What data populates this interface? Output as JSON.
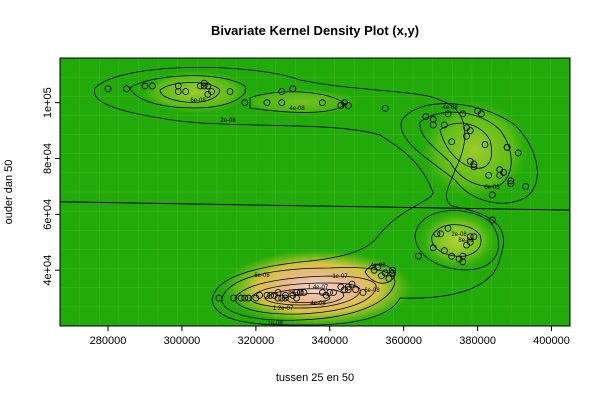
{
  "chart_data": {
    "type": "contour",
    "title": "Bivariate Kernel Density Plot (x,y)",
    "xlabel": "tussen 25 en 50",
    "ylabel": "ouder dan 50",
    "xlim": [
      267000,
      405000
    ],
    "ylim": [
      20000,
      116000
    ],
    "xticks": [
      280000,
      300000,
      320000,
      340000,
      360000,
      380000,
      400000
    ],
    "xtick_labels": [
      "280000",
      "300000",
      "320000",
      "340000",
      "360000",
      "380000",
      "400000"
    ],
    "yticks": [
      40000,
      60000,
      80000,
      100000
    ],
    "ytick_labels": [
      "4e+04",
      "6e+04",
      "8e+04",
      "1e+05"
    ],
    "contour_labels": [
      "2e-08",
      "4e-08",
      "6e-08",
      "4e-08",
      "6e-08",
      "1e-07",
      "8e-08",
      "1.2e-07",
      "1.4e-07",
      "2e-08",
      "4e-08",
      "6e-08",
      "2e-08",
      "8e-08",
      "6e-08",
      "4e-08"
    ],
    "regression_line": {
      "x": [
        267000,
        405000
      ],
      "y": [
        64500,
        61500
      ]
    },
    "points": [
      [
        280000,
        105000
      ],
      [
        285000,
        105000
      ],
      [
        290000,
        106000
      ],
      [
        292000,
        106000
      ],
      [
        299000,
        106000
      ],
      [
        299000,
        104000
      ],
      [
        301000,
        104000
      ],
      [
        305000,
        106000
      ],
      [
        306000,
        107000
      ],
      [
        306000,
        106000
      ],
      [
        307000,
        106000
      ],
      [
        307000,
        103000
      ],
      [
        308000,
        104000
      ],
      [
        313000,
        104000
      ],
      [
        317000,
        100000
      ],
      [
        323000,
        100000
      ],
      [
        327000,
        100000
      ],
      [
        327000,
        104000
      ],
      [
        330000,
        105000
      ],
      [
        338000,
        100000
      ],
      [
        343000,
        99000
      ],
      [
        344000,
        100000
      ],
      [
        345000,
        99000
      ],
      [
        355000,
        98000
      ],
      [
        366000,
        95000
      ],
      [
        368000,
        94000
      ],
      [
        368000,
        92000
      ],
      [
        371000,
        92000
      ],
      [
        372000,
        96000
      ],
      [
        373000,
        86000
      ],
      [
        376000,
        96000
      ],
      [
        377000,
        91000
      ],
      [
        377000,
        88000
      ],
      [
        378000,
        79000
      ],
      [
        378000,
        90000
      ],
      [
        379000,
        78000
      ],
      [
        379000,
        77000
      ],
      [
        380000,
        97000
      ],
      [
        381000,
        96000
      ],
      [
        382000,
        85000
      ],
      [
        383000,
        74000
      ],
      [
        384000,
        67000
      ],
      [
        386000,
        74000
      ],
      [
        386000,
        76000
      ],
      [
        387000,
        75000
      ],
      [
        388000,
        84000
      ],
      [
        388000,
        84000
      ],
      [
        389000,
        71000
      ],
      [
        389000,
        72000
      ],
      [
        391000,
        82000
      ],
      [
        393000,
        70000
      ],
      [
        364000,
        45000
      ],
      [
        368000,
        48000
      ],
      [
        369000,
        53000
      ],
      [
        370000,
        53000
      ],
      [
        371000,
        47000
      ],
      [
        372000,
        55000
      ],
      [
        373000,
        45000
      ],
      [
        375000,
        44000
      ],
      [
        376000,
        45000
      ],
      [
        376000,
        43000
      ],
      [
        377000,
        49000
      ],
      [
        378000,
        50000
      ],
      [
        378000,
        52000
      ],
      [
        379000,
        52000
      ],
      [
        384000,
        58000
      ],
      [
        310000,
        30000
      ],
      [
        314000,
        30000
      ],
      [
        316000,
        30000
      ],
      [
        317000,
        30000
      ],
      [
        318000,
        30000
      ],
      [
        320000,
        30000
      ],
      [
        321000,
        31000
      ],
      [
        323000,
        31000
      ],
      [
        324000,
        31000
      ],
      [
        325000,
        31000
      ],
      [
        326000,
        30000
      ],
      [
        326000,
        32000
      ],
      [
        327000,
        30000
      ],
      [
        328000,
        30000
      ],
      [
        328000,
        31000
      ],
      [
        330000,
        31000
      ],
      [
        331000,
        30000
      ],
      [
        331000,
        32000
      ],
      [
        332000,
        32000
      ],
      [
        333000,
        32000
      ],
      [
        338000,
        32000
      ],
      [
        339000,
        31000
      ],
      [
        340000,
        32000
      ],
      [
        341000,
        32000
      ],
      [
        343000,
        34000
      ],
      [
        344000,
        33000
      ],
      [
        345000,
        34000
      ],
      [
        345000,
        33000
      ],
      [
        346000,
        35000
      ],
      [
        347000,
        33000
      ],
      [
        349000,
        32000
      ],
      [
        352000,
        40000
      ],
      [
        353000,
        41000
      ],
      [
        354000,
        38000
      ],
      [
        355000,
        39000
      ],
      [
        356000,
        37000
      ],
      [
        357000,
        39000
      ],
      [
        357000,
        40000
      ]
    ]
  }
}
